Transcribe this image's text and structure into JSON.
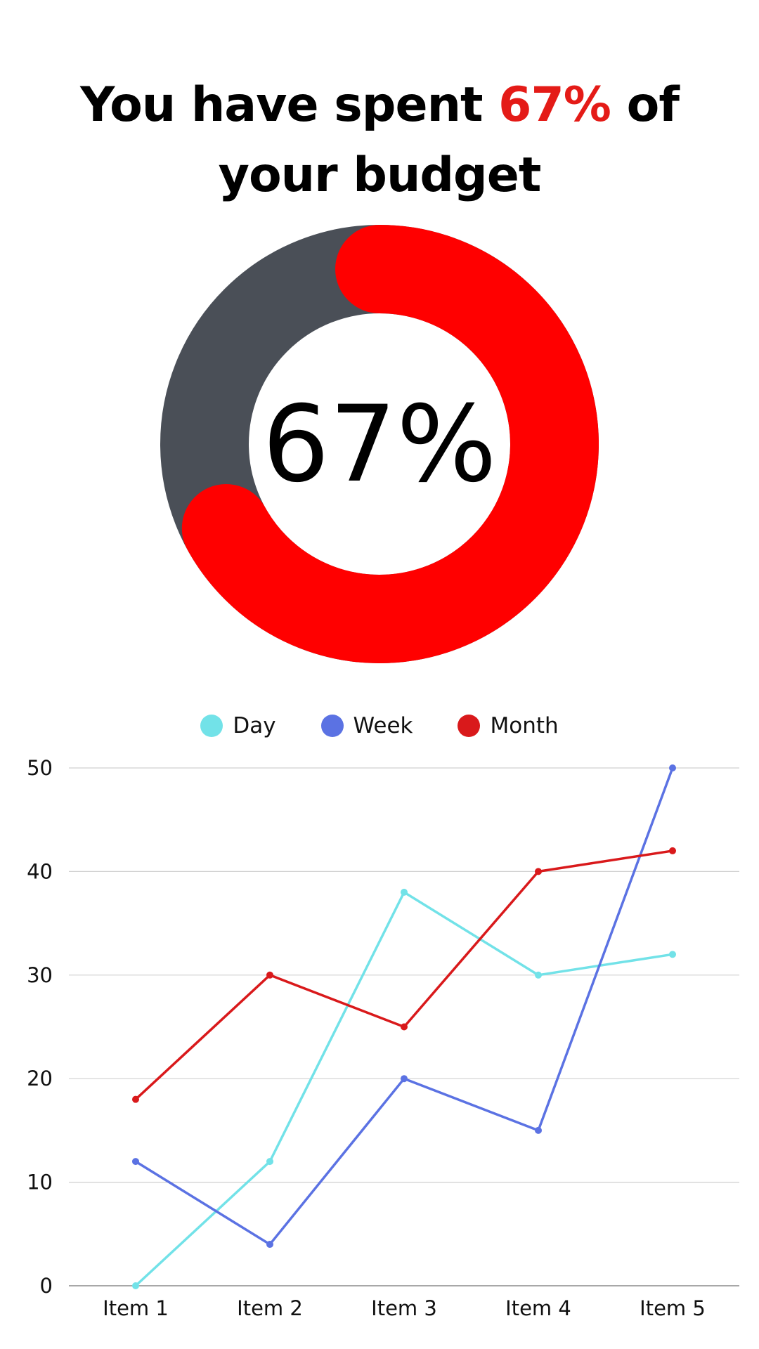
{
  "headline": {
    "prefix": "You have spent ",
    "highlight": "67%",
    "suffix": " of your budget",
    "highlight_color": "#e41b17"
  },
  "chart_data": [
    {
      "type": "pie",
      "variant": "donut",
      "center_label": "67%",
      "slices": [
        {
          "value": 67,
          "color": "#ff0000"
        },
        {
          "value": 33,
          "color": "#4a4f57"
        }
      ]
    },
    {
      "type": "line",
      "categories": [
        "Item 1",
        "Item 2",
        "Item 3",
        "Item 4",
        "Item 5"
      ],
      "series": [
        {
          "name": "Day",
          "color": "#72e2e8",
          "values": [
            0,
            12,
            38,
            30,
            32
          ]
        },
        {
          "name": "Week",
          "color": "#5b72e3",
          "values": [
            12,
            4,
            20,
            15,
            50
          ]
        },
        {
          "name": "Month",
          "color": "#d9191b",
          "values": [
            18,
            30,
            25,
            40,
            42
          ]
        }
      ],
      "ylim": [
        0,
        50
      ],
      "yticks": [
        0,
        10,
        20,
        30,
        40,
        50
      ],
      "grid": true,
      "legend": "top-center",
      "title": "",
      "xlabel": "",
      "ylabel": ""
    }
  ]
}
